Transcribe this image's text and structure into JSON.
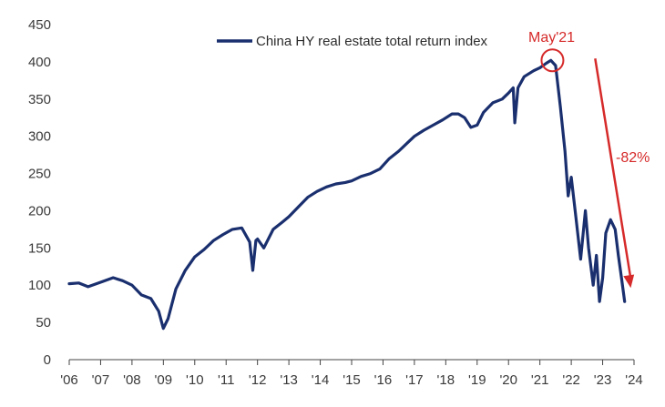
{
  "chart_data": {
    "type": "line",
    "title": "",
    "xlabel": "",
    "ylabel": "",
    "legend": {
      "label": "China HY real estate total return index",
      "position": "top-center"
    },
    "ylim": [
      0,
      450
    ],
    "yticks": [
      0,
      50,
      100,
      150,
      200,
      250,
      300,
      350,
      400,
      450
    ],
    "ytick_labels": [
      "0",
      "50",
      "100",
      "150",
      "200",
      "250",
      "300",
      "350",
      "400",
      "450"
    ],
    "xlim": [
      2006,
      2024
    ],
    "xticks": [
      2006,
      2007,
      2008,
      2009,
      2010,
      2011,
      2012,
      2013,
      2014,
      2015,
      2016,
      2017,
      2018,
      2019,
      2020,
      2021,
      2022,
      2023,
      2024
    ],
    "xtick_labels": [
      "'06",
      "'07",
      "'08",
      "'09",
      "'10",
      "'11",
      "'12",
      "'13",
      "'14",
      "'15",
      "'16",
      "'17",
      "'18",
      "'19",
      "'20",
      "'21",
      "'22",
      "'23",
      "'24"
    ],
    "grid": false,
    "series": [
      {
        "name": "China HY real estate total return index",
        "color": "#1a2f6e",
        "x": [
          2006.0,
          2006.3,
          2006.6,
          2007.0,
          2007.4,
          2007.7,
          2008.0,
          2008.3,
          2008.6,
          2008.85,
          2009.0,
          2009.15,
          2009.4,
          2009.7,
          2010.0,
          2010.3,
          2010.6,
          2010.9,
          2011.2,
          2011.5,
          2011.75,
          2011.85,
          2011.95,
          2012.0,
          2012.2,
          2012.5,
          2012.8,
          2013.0,
          2013.3,
          2013.6,
          2013.9,
          2014.2,
          2014.5,
          2014.8,
          2015.0,
          2015.3,
          2015.6,
          2015.9,
          2016.2,
          2016.5,
          2016.8,
          2017.0,
          2017.3,
          2017.6,
          2017.9,
          2018.2,
          2018.4,
          2018.6,
          2018.8,
          2019.0,
          2019.2,
          2019.5,
          2019.8,
          2020.0,
          2020.15,
          2020.2,
          2020.3,
          2020.5,
          2020.8,
          2021.0,
          2021.2,
          2021.35,
          2021.5,
          2021.65,
          2021.8,
          2021.9,
          2022.0,
          2022.15,
          2022.3,
          2022.45,
          2022.55,
          2022.7,
          2022.8,
          2022.9,
          2023.0,
          2023.1,
          2023.25,
          2023.4,
          2023.5,
          2023.6,
          2023.7
        ],
        "values": [
          102,
          103,
          98,
          104,
          110,
          106,
          100,
          87,
          82,
          65,
          42,
          55,
          95,
          120,
          138,
          148,
          160,
          168,
          175,
          177,
          158,
          120,
          160,
          162,
          150,
          175,
          185,
          192,
          205,
          218,
          226,
          232,
          236,
          238,
          240,
          246,
          250,
          256,
          270,
          280,
          292,
          300,
          308,
          315,
          322,
          330,
          330,
          325,
          312,
          315,
          332,
          345,
          350,
          358,
          365,
          318,
          365,
          380,
          388,
          392,
          398,
          402,
          395,
          340,
          280,
          220,
          245,
          190,
          135,
          200,
          150,
          100,
          140,
          78,
          110,
          170,
          188,
          175,
          140,
          110,
          78
        ]
      }
    ],
    "annotations": [
      {
        "text": "May'21",
        "x": 2021.4,
        "y": 402,
        "marker": "circle",
        "color": "#d62a2a"
      },
      {
        "text": "-82%",
        "type": "arrow",
        "from": [
          2021.6,
          402
        ],
        "to": [
          2023.75,
          100
        ],
        "color": "#d62a2a"
      }
    ]
  }
}
